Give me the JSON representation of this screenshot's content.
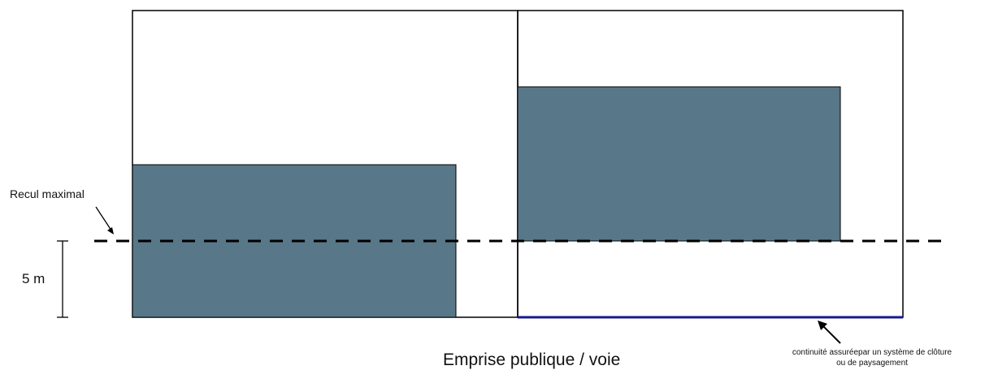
{
  "labels": {
    "recul": "Recul maximal",
    "distance": "5 m",
    "road": "Emprise publique / voie",
    "note_line1": "continuité assuréepar un système de clôture",
    "note_line2": "ou de paysagement"
  },
  "colors": {
    "building": "#587788",
    "lot_outline": "#000000",
    "fence_line": "#1a1a8c",
    "setback_line": "#000000"
  }
}
